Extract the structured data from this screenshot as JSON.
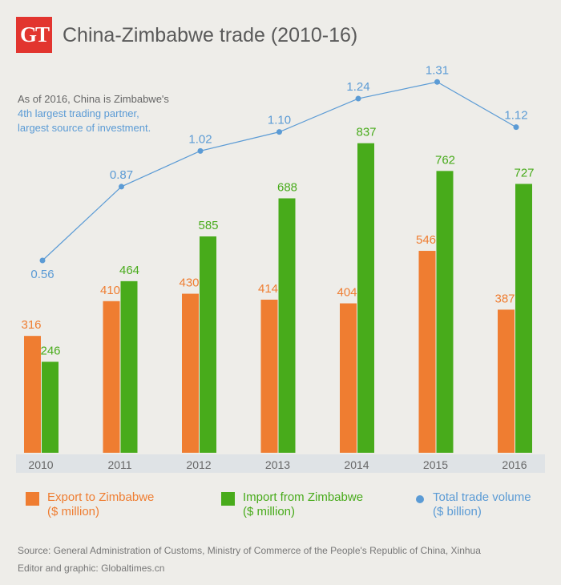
{
  "header": {
    "logo": "GT",
    "title": "China-Zimbabwe trade (2010-16)"
  },
  "note": {
    "line1": "As of 2016, China is Zimbabwe's",
    "line2": "4th largest trading partner,",
    "line3": "largest source of investment."
  },
  "colors": {
    "export": "#ef7d31",
    "import": "#48ab1b",
    "total": "#5b9bd5",
    "axis_band": "#dfe3e6"
  },
  "chart_data": {
    "type": "bar",
    "categories": [
      "2010",
      "2011",
      "2012",
      "2013",
      "2014",
      "2015",
      "2016"
    ],
    "series": [
      {
        "name": "Export to Zimbabwe ($ million)",
        "type": "bar",
        "values": [
          316,
          410,
          430,
          414,
          404,
          546,
          387
        ]
      },
      {
        "name": "Import from Zimbabwe ($ million)",
        "type": "bar",
        "values": [
          246,
          464,
          585,
          688,
          837,
          762,
          727
        ]
      },
      {
        "name": "Total trade volume ($ billion)",
        "type": "line",
        "values": [
          0.56,
          0.87,
          1.02,
          1.1,
          1.24,
          1.31,
          1.12
        ],
        "labels": [
          "0.56",
          "0.87",
          "1.02",
          "1.10",
          "1.24",
          "1.31",
          "1.12"
        ]
      }
    ],
    "grid": false,
    "legend_placement": "bottom"
  },
  "legend": [
    {
      "line1": "Export to Zimbabwe",
      "line2": "($ million)"
    },
    {
      "line1": "Import from Zimbabwe",
      "line2": "($ million)"
    },
    {
      "line1": "Total trade volume",
      "line2": "($ billion)"
    }
  ],
  "footer": {
    "source": "Source: General Administration of Customs, Ministry of Commerce of the People's Republic of China, Xinhua",
    "credit": "Editor and graphic: Globaltimes.cn"
  }
}
